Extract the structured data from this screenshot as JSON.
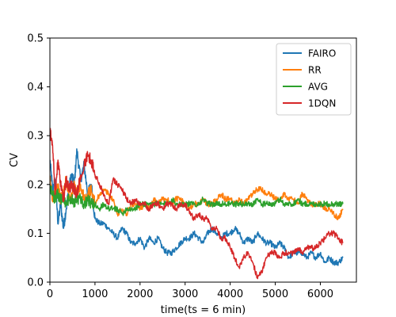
{
  "chart_data": {
    "type": "line",
    "title": "",
    "xlabel": "time(ts = 6 min)",
    "ylabel": "CV",
    "xlim": [
      0,
      6800
    ],
    "ylim": [
      0,
      0.5
    ],
    "xticks": [
      0,
      1000,
      2000,
      3000,
      4000,
      5000,
      6000
    ],
    "yticks": [
      0.0,
      0.1,
      0.2,
      0.3,
      0.4,
      0.5
    ],
    "xtick_labels": [
      "0",
      "1000",
      "2000",
      "3000",
      "4000",
      "5000",
      "6000"
    ],
    "ytick_labels": [
      "0.0",
      "0.1",
      "0.2",
      "0.3",
      "0.4",
      "0.5"
    ],
    "grid": false,
    "legend_position": "top-right",
    "series": [
      {
        "name": "FAIRO",
        "color": "#1f77b4",
        "x": [
          0,
          60,
          120,
          180,
          240,
          300,
          360,
          420,
          480,
          540,
          600,
          680,
          760,
          840,
          920,
          1000,
          1100,
          1200,
          1300,
          1400,
          1500,
          1600,
          1700,
          1800,
          1900,
          2000,
          2100,
          2200,
          2300,
          2400,
          2500,
          2600,
          2700,
          2800,
          2900,
          3000,
          3100,
          3200,
          3300,
          3400,
          3500,
          3600,
          3700,
          3800,
          3900,
          4000,
          4100,
          4200,
          4300,
          4400,
          4500,
          4600,
          4700,
          4800,
          4900,
          5000,
          5100,
          5200,
          5300,
          5400,
          5500,
          5600,
          5700,
          5800,
          5900,
          6000,
          6100,
          6200,
          6300,
          6400,
          6500
        ],
        "values": [
          0.25,
          0.19,
          0.21,
          0.12,
          0.16,
          0.11,
          0.15,
          0.19,
          0.22,
          0.2,
          0.27,
          0.21,
          0.24,
          0.18,
          0.2,
          0.13,
          0.12,
          0.12,
          0.11,
          0.1,
          0.09,
          0.11,
          0.1,
          0.08,
          0.08,
          0.09,
          0.07,
          0.09,
          0.08,
          0.09,
          0.07,
          0.06,
          0.06,
          0.07,
          0.08,
          0.09,
          0.09,
          0.1,
          0.09,
          0.08,
          0.1,
          0.11,
          0.1,
          0.09,
          0.1,
          0.1,
          0.11,
          0.1,
          0.08,
          0.09,
          0.08,
          0.1,
          0.09,
          0.08,
          0.08,
          0.07,
          0.08,
          0.07,
          0.05,
          0.06,
          0.06,
          0.06,
          0.05,
          0.06,
          0.05,
          0.06,
          0.04,
          0.05,
          0.04,
          0.04,
          0.05
        ]
      },
      {
        "name": "RR",
        "color": "#ff7f0e",
        "x": [
          0,
          60,
          120,
          180,
          240,
          300,
          360,
          420,
          480,
          540,
          600,
          680,
          760,
          840,
          920,
          1000,
          1100,
          1200,
          1300,
          1400,
          1500,
          1600,
          1700,
          1800,
          1900,
          2000,
          2100,
          2200,
          2300,
          2400,
          2500,
          2600,
          2700,
          2800,
          2900,
          3000,
          3100,
          3200,
          3300,
          3400,
          3500,
          3600,
          3700,
          3800,
          3900,
          4000,
          4100,
          4200,
          4300,
          4400,
          4500,
          4600,
          4700,
          4800,
          4900,
          5000,
          5100,
          5200,
          5300,
          5400,
          5500,
          5600,
          5700,
          5800,
          5900,
          6000,
          6100,
          6200,
          6300,
          6400,
          6500
        ],
        "values": [
          0.21,
          0.17,
          0.19,
          0.2,
          0.17,
          0.18,
          0.21,
          0.18,
          0.17,
          0.2,
          0.18,
          0.2,
          0.17,
          0.18,
          0.19,
          0.16,
          0.18,
          0.19,
          0.18,
          0.17,
          0.14,
          0.15,
          0.14,
          0.16,
          0.16,
          0.15,
          0.16,
          0.15,
          0.17,
          0.16,
          0.17,
          0.17,
          0.16,
          0.17,
          0.17,
          0.16,
          0.15,
          0.16,
          0.16,
          0.17,
          0.16,
          0.16,
          0.17,
          0.18,
          0.17,
          0.17,
          0.16,
          0.17,
          0.16,
          0.17,
          0.18,
          0.19,
          0.19,
          0.18,
          0.18,
          0.17,
          0.17,
          0.18,
          0.17,
          0.17,
          0.16,
          0.18,
          0.17,
          0.16,
          0.16,
          0.16,
          0.15,
          0.15,
          0.14,
          0.13,
          0.15
        ]
      },
      {
        "name": "AVG",
        "color": "#2ca02c",
        "x": [
          0,
          60,
          120,
          180,
          240,
          300,
          360,
          420,
          480,
          540,
          600,
          680,
          760,
          840,
          920,
          1000,
          1100,
          1200,
          1300,
          1400,
          1500,
          1600,
          1700,
          1800,
          1900,
          2000,
          2100,
          2200,
          2300,
          2400,
          2500,
          2600,
          2700,
          2800,
          2900,
          3000,
          3100,
          3200,
          3300,
          3400,
          3500,
          3600,
          3700,
          3800,
          3900,
          4000,
          4100,
          4200,
          4300,
          4400,
          4500,
          4600,
          4700,
          4800,
          4900,
          5000,
          5100,
          5200,
          5300,
          5400,
          5500,
          5600,
          5700,
          5800,
          5900,
          6000,
          6100,
          6200,
          6300,
          6400,
          6500
        ],
        "values": [
          0.2,
          0.18,
          0.17,
          0.18,
          0.17,
          0.17,
          0.16,
          0.17,
          0.17,
          0.16,
          0.17,
          0.17,
          0.16,
          0.17,
          0.16,
          0.16,
          0.15,
          0.16,
          0.15,
          0.15,
          0.15,
          0.14,
          0.15,
          0.15,
          0.15,
          0.16,
          0.16,
          0.16,
          0.16,
          0.16,
          0.16,
          0.16,
          0.17,
          0.16,
          0.16,
          0.16,
          0.16,
          0.16,
          0.16,
          0.17,
          0.16,
          0.16,
          0.16,
          0.16,
          0.16,
          0.16,
          0.16,
          0.16,
          0.16,
          0.16,
          0.16,
          0.17,
          0.16,
          0.16,
          0.16,
          0.16,
          0.17,
          0.16,
          0.16,
          0.16,
          0.17,
          0.16,
          0.16,
          0.16,
          0.16,
          0.16,
          0.16,
          0.16,
          0.16,
          0.16,
          0.16
        ]
      },
      {
        "name": "1DQN",
        "color": "#d62728",
        "x": [
          0,
          60,
          120,
          180,
          240,
          300,
          360,
          420,
          480,
          540,
          600,
          680,
          760,
          840,
          920,
          1000,
          1100,
          1200,
          1300,
          1400,
          1500,
          1600,
          1700,
          1800,
          1900,
          2000,
          2100,
          2200,
          2300,
          2400,
          2500,
          2600,
          2700,
          2800,
          2900,
          3000,
          3100,
          3200,
          3300,
          3400,
          3500,
          3600,
          3700,
          3800,
          3900,
          4000,
          4100,
          4200,
          4300,
          4400,
          4500,
          4600,
          4700,
          4800,
          4900,
          5000,
          5100,
          5200,
          5300,
          5400,
          5500,
          5600,
          5700,
          5800,
          5900,
          6000,
          6100,
          6200,
          6300,
          6400,
          6500
        ],
        "values": [
          0.31,
          0.28,
          0.18,
          0.25,
          0.2,
          0.17,
          0.21,
          0.19,
          0.2,
          0.19,
          0.18,
          0.22,
          0.24,
          0.26,
          0.25,
          0.22,
          0.2,
          0.18,
          0.16,
          0.21,
          0.2,
          0.19,
          0.17,
          0.16,
          0.17,
          0.16,
          0.16,
          0.15,
          0.16,
          0.16,
          0.15,
          0.16,
          0.16,
          0.15,
          0.16,
          0.16,
          0.14,
          0.13,
          0.14,
          0.13,
          0.13,
          0.11,
          0.11,
          0.09,
          0.09,
          0.07,
          0.05,
          0.03,
          0.05,
          0.06,
          0.04,
          0.01,
          0.02,
          0.05,
          0.06,
          0.06,
          0.05,
          0.06,
          0.06,
          0.06,
          0.07,
          0.06,
          0.07,
          0.07,
          0.07,
          0.08,
          0.09,
          0.1,
          0.1,
          0.09,
          0.08
        ]
      }
    ]
  }
}
